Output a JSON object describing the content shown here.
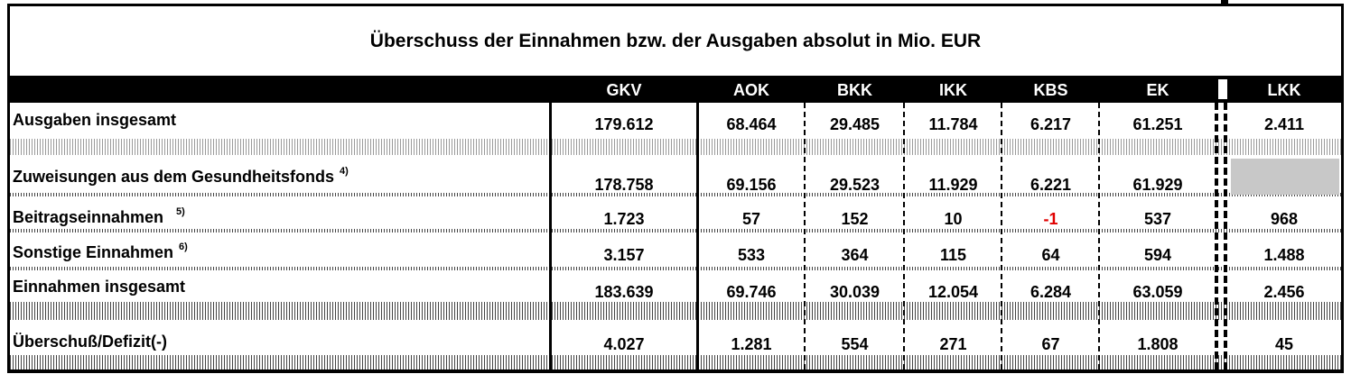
{
  "title": "Überschuss der Einnahmen bzw. der Ausgaben absolut in Mio. EUR",
  "columns": [
    "GKV",
    "AOK",
    "BKK",
    "IKK",
    "KBS",
    "EK",
    "LKK"
  ],
  "rows": [
    {
      "label": "Ausgaben insgesamt",
      "sup": "",
      "values": [
        "179.612",
        "68.464",
        "29.485",
        "11.784",
        "6.217",
        "61.251",
        "2.411"
      ]
    },
    {
      "label": "Zuweisungen aus dem Gesundheitsfonds",
      "sup": "4)",
      "values": [
        "178.758",
        "69.156",
        "29.523",
        "11.929",
        "6.221",
        "61.929",
        ""
      ]
    },
    {
      "label": "Beitragseinnahmen",
      "sup": "5)",
      "values": [
        "1.723",
        "57",
        "152",
        "10",
        "-1",
        "537",
        "968"
      ]
    },
    {
      "label": "Sonstige Einnahmen",
      "sup": "6)",
      "values": [
        "3.157",
        "533",
        "364",
        "115",
        "64",
        "594",
        "1.488"
      ]
    },
    {
      "label": "Einnahmen insgesamt",
      "sup": "",
      "values": [
        "183.639",
        "69.746",
        "30.039",
        "12.054",
        "6.284",
        "63.059",
        "2.456"
      ]
    },
    {
      "label": "Überschuß/Defizit(-)",
      "sup": "",
      "values": [
        "4.027",
        "1.281",
        "554",
        "271",
        "67",
        "1.808",
        "45"
      ]
    }
  ],
  "colors": {
    "negative": "#e00000",
    "header_bg": "#000000",
    "empty_cell": "#c8c8c8"
  }
}
